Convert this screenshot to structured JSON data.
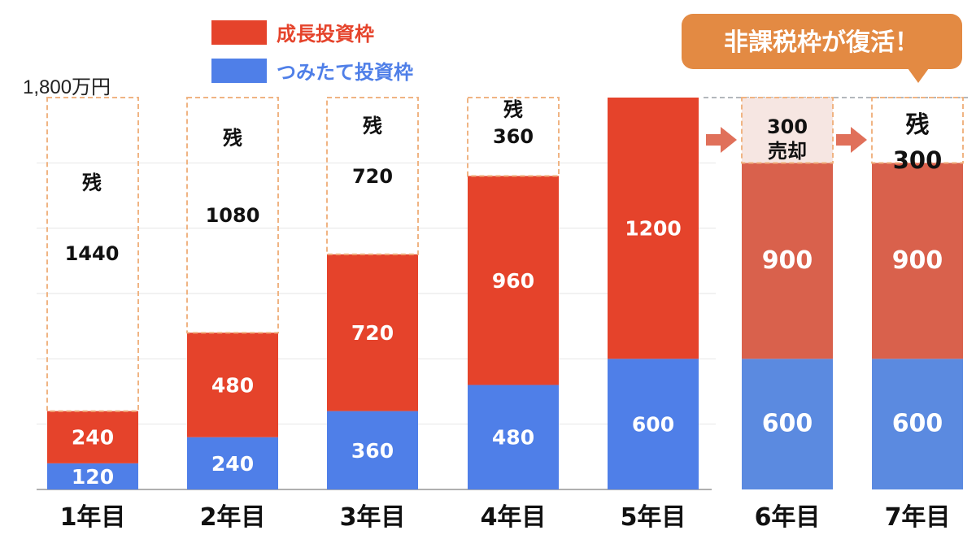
{
  "chart_data": {
    "type": "bar",
    "stacked": true,
    "y_axis_top_label": "1,800万円",
    "ylim": [
      0,
      1800
    ],
    "grid": true,
    "legend": [
      {
        "name": "成長投資枠",
        "color": "#e5432b"
      },
      {
        "name": "つみたて投資枠",
        "color": "#4f7fe8"
      }
    ],
    "categories": [
      "1年目",
      "2年目",
      "3年目",
      "4年目",
      "5年目",
      "6年目",
      "7年目"
    ],
    "series": [
      {
        "name": "つみたて投資枠",
        "values": [
          120,
          240,
          360,
          480,
          600,
          600,
          600
        ]
      },
      {
        "name": "成長投資枠",
        "values": [
          240,
          480,
          720,
          960,
          1200,
          900,
          900
        ]
      }
    ],
    "remaining": [
      {
        "value": 1440,
        "prefix": "残",
        "text": "1440"
      },
      {
        "value": 1080,
        "prefix": "残",
        "text": "1080"
      },
      {
        "value": 720,
        "prefix": "残",
        "text": "720"
      },
      {
        "value": 360,
        "prefix": "残",
        "text": "360"
      },
      {
        "value": 0,
        "prefix": "",
        "text": ""
      },
      {
        "value": 300,
        "prefix": "300",
        "text": "売却"
      },
      {
        "value": 300,
        "prefix": "残",
        "text": "300"
      }
    ],
    "callout": "非課税枠が復活！",
    "colors": {
      "growth": "#e5432b",
      "growth_muted": "#d9614c",
      "tsumitate": "#4f7fe8",
      "tsumitate_muted": "#5b8ae0",
      "remaining_border": "#f0b483",
      "sold_fill": "#f6e6e2",
      "arrow": "#e0705a",
      "callout_bg": "#e38a43"
    }
  }
}
